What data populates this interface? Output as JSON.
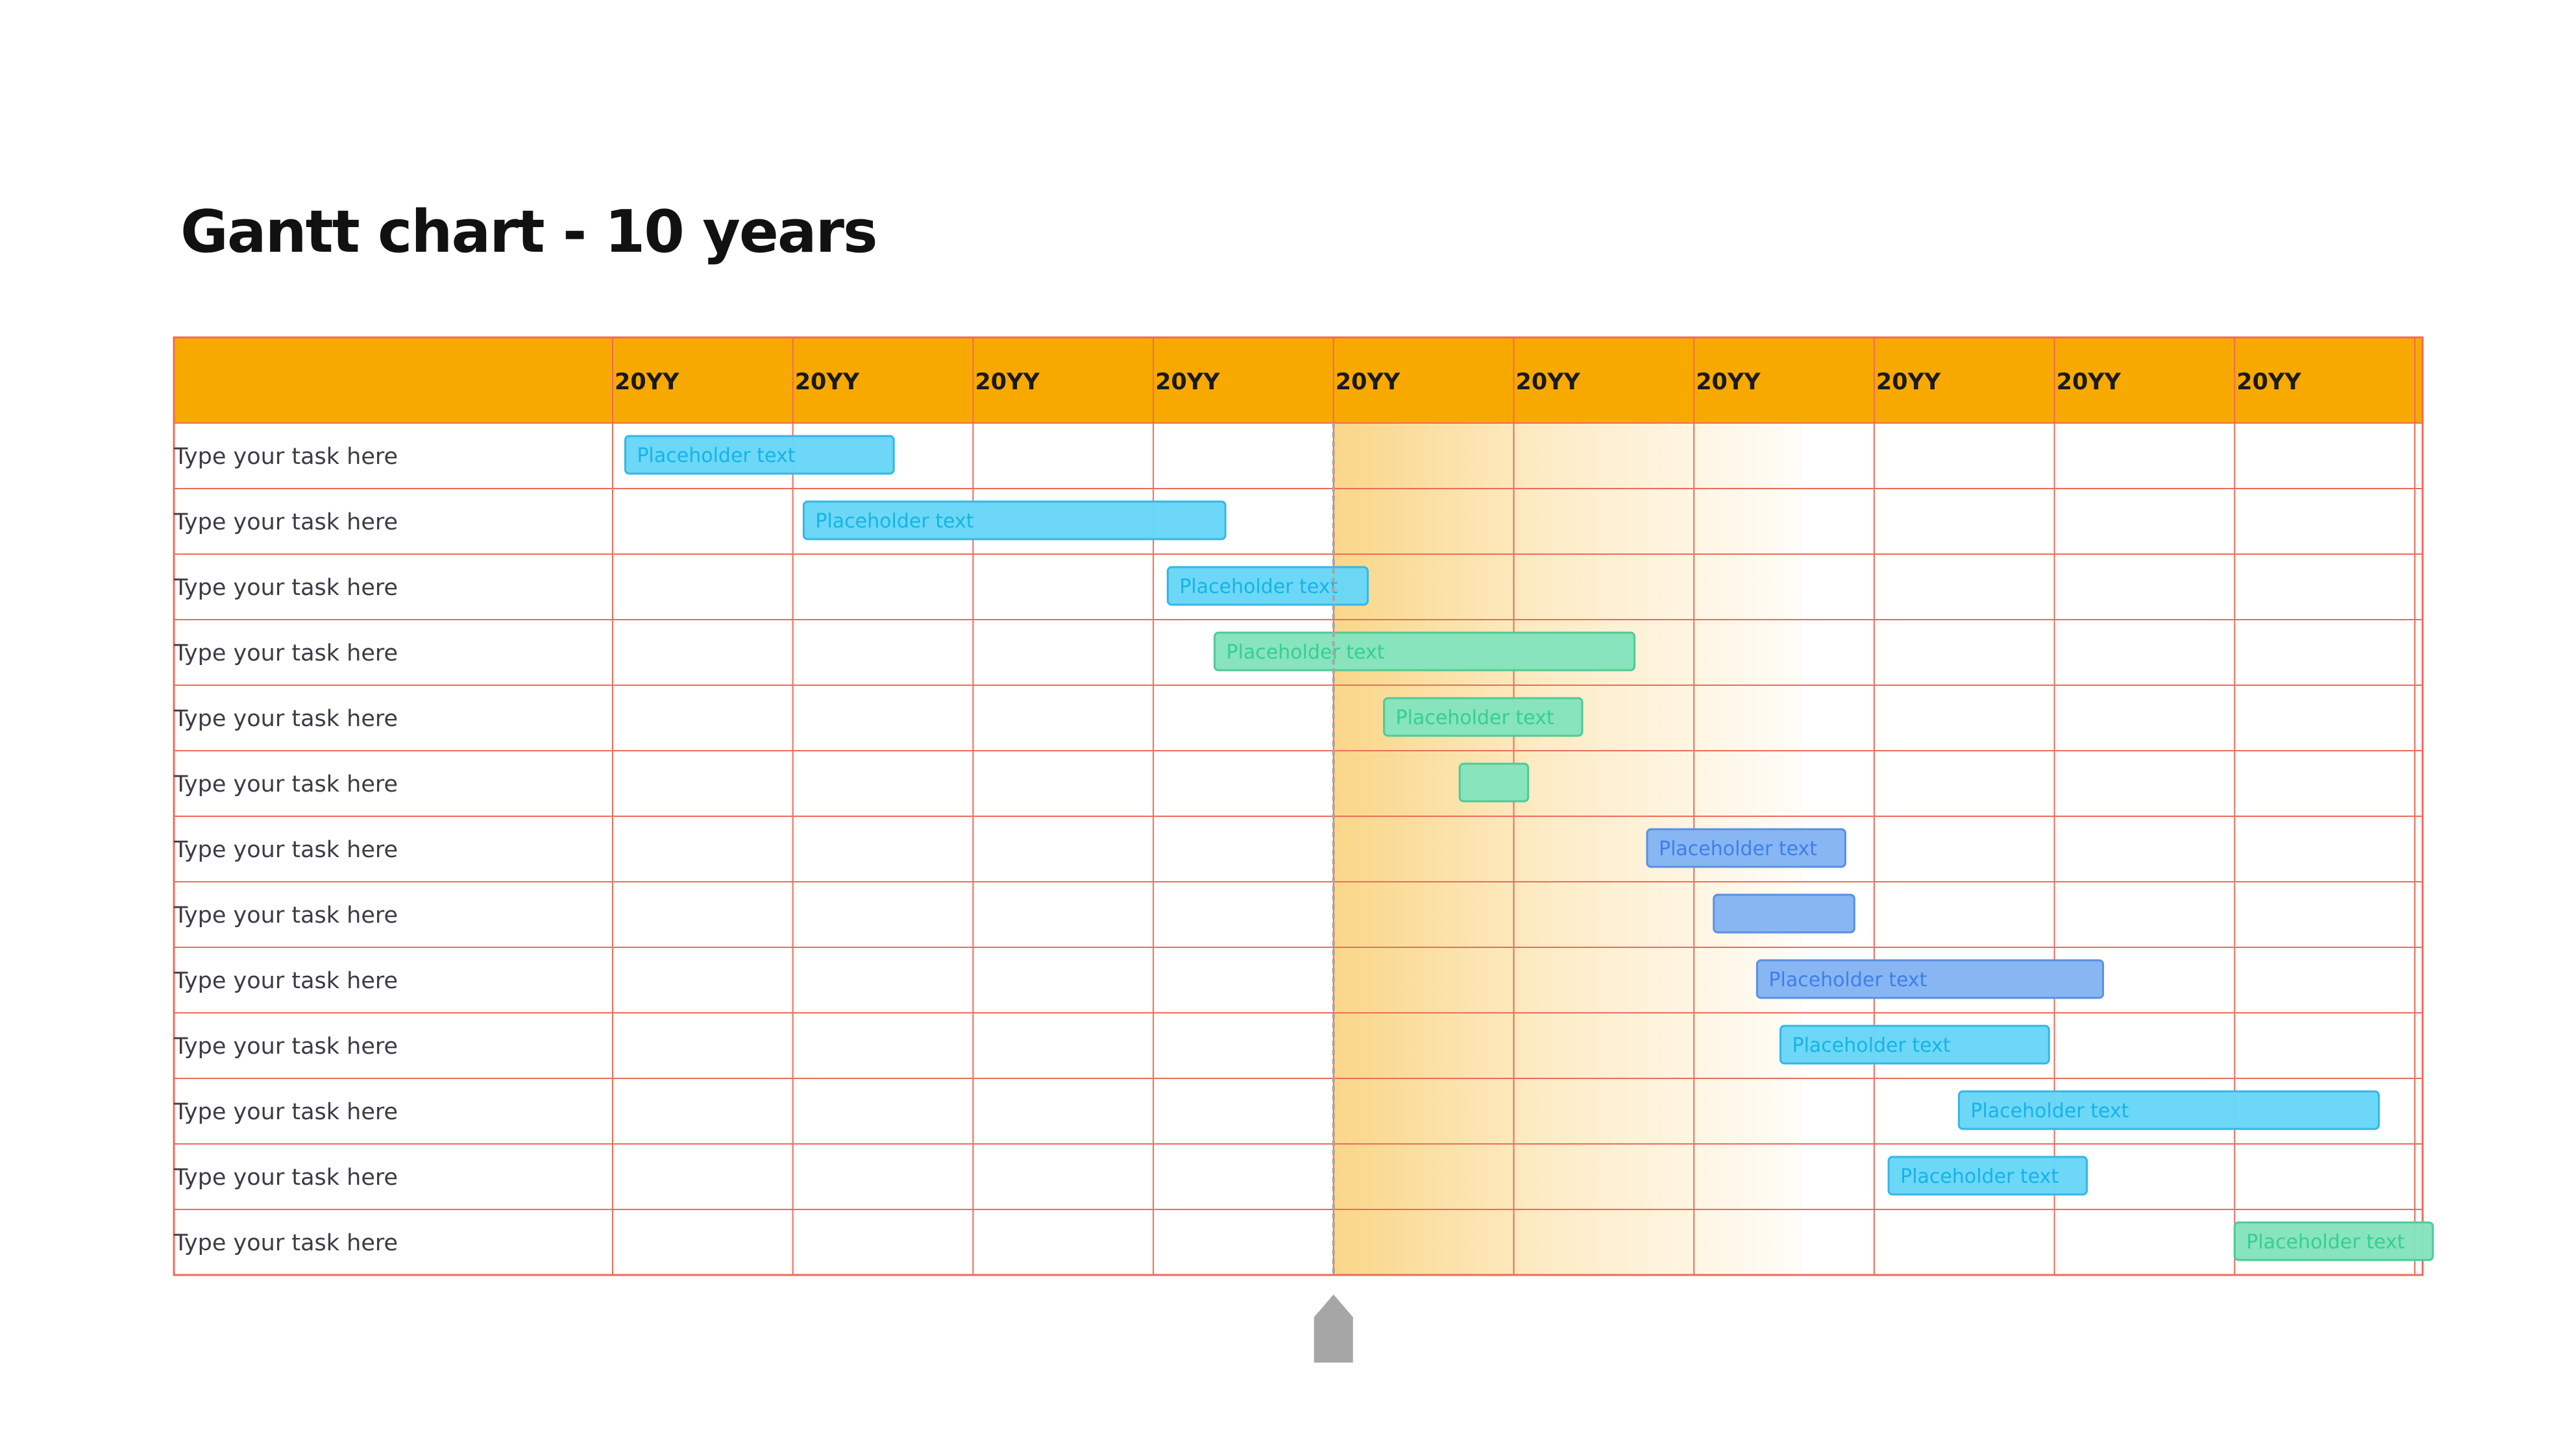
{
  "title": "Gantt chart - 10 years",
  "colors": {
    "header": "#F8A900",
    "grid": "#EE6B5A",
    "highlight": "#F7C350",
    "marker": "#A6A6A6",
    "cyan_fill": "#69D6F6",
    "cyan_stroke": "#35B6E6",
    "cyan_text": "#15B4E6",
    "green_fill": "#85E3BD",
    "green_stroke": "#52C995",
    "green_text": "#36CF8F",
    "blue_fill": "#86B5F3",
    "blue_stroke": "#5A8FE3",
    "blue_text": "#3F7FE6"
  },
  "chart_data": {
    "type": "gantt",
    "title": "Gantt chart - 10 years",
    "x_categories": [
      "20YY",
      "20YY",
      "20YY",
      "20YY",
      "20YY",
      "20YY",
      "20YY",
      "20YY",
      "20YY",
      "20YY"
    ],
    "x_range": [
      0,
      10
    ],
    "current_marker": 4.0,
    "highlight_range": [
      4.0,
      6.6
    ],
    "tasks": [
      {
        "label": "Type your task here",
        "bar_text": "Placeholder text",
        "start": 0.07,
        "end": 1.56,
        "color": "cyan"
      },
      {
        "label": "Type your task here",
        "bar_text": "Placeholder text",
        "start": 1.06,
        "end": 3.4,
        "color": "cyan"
      },
      {
        "label": "Type your task here",
        "bar_text": "Placeholder text",
        "start": 3.08,
        "end": 4.19,
        "color": "cyan"
      },
      {
        "label": "Type your task here",
        "bar_text": "Placeholder text",
        "start": 3.34,
        "end": 5.67,
        "color": "green"
      },
      {
        "label": "Type your task here",
        "bar_text": "Placeholder text",
        "start": 4.28,
        "end": 5.38,
        "color": "green"
      },
      {
        "label": "Type your task here",
        "bar_text": "",
        "start": 4.7,
        "end": 5.08,
        "color": "green"
      },
      {
        "label": "Type your task here",
        "bar_text": "Placeholder text",
        "start": 5.74,
        "end": 6.84,
        "color": "blue"
      },
      {
        "label": "Type your task here",
        "bar_text": "",
        "start": 6.11,
        "end": 6.89,
        "color": "blue"
      },
      {
        "label": "Type your task here",
        "bar_text": "Placeholder text",
        "start": 6.35,
        "end": 8.27,
        "color": "blue"
      },
      {
        "label": "Type your task here",
        "bar_text": "Placeholder text",
        "start": 6.48,
        "end": 7.97,
        "color": "cyan"
      },
      {
        "label": "Type your task here",
        "bar_text": "Placeholder text",
        "start": 7.47,
        "end": 9.8,
        "color": "cyan"
      },
      {
        "label": "Type your task here",
        "bar_text": "Placeholder text",
        "start": 7.08,
        "end": 8.18,
        "color": "cyan"
      },
      {
        "label": "Type your task here",
        "bar_text": "Placeholder text",
        "start": 9.0,
        "end": 10.1,
        "color": "green"
      }
    ]
  }
}
